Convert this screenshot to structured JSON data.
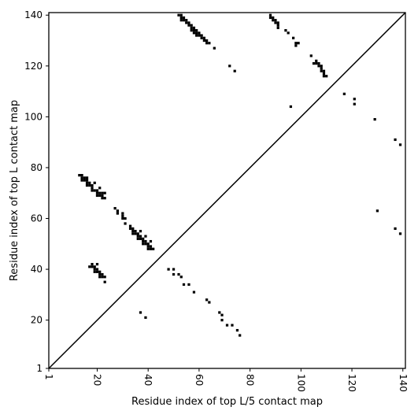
{
  "chart_data": {
    "type": "heatmap",
    "title": "",
    "xlabel": "Residue index of top L/5 contact map",
    "ylabel": "Residue index of top L contact map",
    "xlim": [
      1,
      141
    ],
    "ylim": [
      1,
      141
    ],
    "x_ticks": [
      1,
      20,
      40,
      60,
      80,
      100,
      120,
      140
    ],
    "y_ticks": [
      1,
      20,
      40,
      60,
      80,
      100,
      120,
      140
    ],
    "diagonal": true,
    "colors": {
      "contact": "#000000",
      "background": "#ffffff",
      "diagonal": "#000000"
    },
    "contacts": [
      [
        13,
        77
      ],
      [
        14,
        77
      ],
      [
        14,
        76
      ],
      [
        15,
        76
      ],
      [
        16,
        76
      ],
      [
        14,
        75
      ],
      [
        15,
        75
      ],
      [
        16,
        75
      ],
      [
        16,
        74
      ],
      [
        17,
        74
      ],
      [
        16,
        73
      ],
      [
        17,
        73
      ],
      [
        18,
        73
      ],
      [
        18,
        72
      ],
      [
        18,
        71
      ],
      [
        19,
        71
      ],
      [
        20,
        71
      ],
      [
        19,
        74
      ],
      [
        21,
        72
      ],
      [
        20,
        70
      ],
      [
        21,
        70
      ],
      [
        22,
        70
      ],
      [
        20,
        69
      ],
      [
        21,
        69
      ],
      [
        22,
        69
      ],
      [
        23,
        70
      ],
      [
        22,
        68
      ],
      [
        23,
        68
      ],
      [
        27,
        64
      ],
      [
        28,
        63
      ],
      [
        28,
        62
      ],
      [
        30,
        62
      ],
      [
        30,
        61
      ],
      [
        30,
        60
      ],
      [
        31,
        60
      ],
      [
        31,
        58
      ],
      [
        33,
        57
      ],
      [
        33,
        56
      ],
      [
        34,
        56
      ],
      [
        34,
        55
      ],
      [
        35,
        55
      ],
      [
        34,
        54
      ],
      [
        35,
        54
      ],
      [
        36,
        54
      ],
      [
        37,
        55
      ],
      [
        36,
        53
      ],
      [
        37,
        53
      ],
      [
        36,
        52
      ],
      [
        37,
        52
      ],
      [
        38,
        52
      ],
      [
        39,
        53
      ],
      [
        38,
        51
      ],
      [
        39,
        51
      ],
      [
        38,
        50
      ],
      [
        39,
        50
      ],
      [
        40,
        50
      ],
      [
        41,
        51
      ],
      [
        40,
        49
      ],
      [
        41,
        49
      ],
      [
        40,
        48
      ],
      [
        41,
        48
      ],
      [
        42,
        48
      ],
      [
        17,
        41
      ],
      [
        18,
        42
      ],
      [
        18,
        41
      ],
      [
        19,
        41
      ],
      [
        20,
        42
      ],
      [
        19,
        40
      ],
      [
        20,
        40
      ],
      [
        19,
        39
      ],
      [
        20,
        39
      ],
      [
        21,
        39
      ],
      [
        21,
        38
      ],
      [
        22,
        38
      ],
      [
        21,
        37
      ],
      [
        22,
        37
      ],
      [
        23,
        37
      ],
      [
        23,
        35
      ],
      [
        37,
        23
      ],
      [
        39,
        21
      ],
      [
        48,
        40
      ],
      [
        50,
        40
      ],
      [
        50,
        38
      ],
      [
        52,
        38
      ],
      [
        53,
        37
      ],
      [
        54,
        34
      ],
      [
        56,
        34
      ],
      [
        58,
        31
      ],
      [
        63,
        28
      ],
      [
        64,
        27
      ],
      [
        68,
        23
      ],
      [
        69,
        22
      ],
      [
        69,
        20
      ],
      [
        71,
        18
      ],
      [
        73,
        18
      ],
      [
        75,
        16
      ],
      [
        76,
        14
      ],
      [
        52,
        140
      ],
      [
        53,
        140
      ],
      [
        53,
        139
      ],
      [
        54,
        139
      ],
      [
        53,
        138
      ],
      [
        54,
        138
      ],
      [
        55,
        138
      ],
      [
        55,
        137
      ],
      [
        56,
        137
      ],
      [
        56,
        136
      ],
      [
        57,
        136
      ],
      [
        57,
        135
      ],
      [
        58,
        135
      ],
      [
        57,
        134
      ],
      [
        58,
        134
      ],
      [
        59,
        134
      ],
      [
        58,
        133
      ],
      [
        59,
        133
      ],
      [
        60,
        133
      ],
      [
        59,
        132
      ],
      [
        60,
        132
      ],
      [
        61,
        132
      ],
      [
        61,
        131
      ],
      [
        62,
        131
      ],
      [
        62,
        130
      ],
      [
        63,
        130
      ],
      [
        63,
        129
      ],
      [
        64,
        129
      ],
      [
        66,
        127
      ],
      [
        72,
        120
      ],
      [
        74,
        118
      ],
      [
        88,
        140
      ],
      [
        88,
        139
      ],
      [
        89,
        139
      ],
      [
        89,
        138
      ],
      [
        90,
        138
      ],
      [
        90,
        137
      ],
      [
        91,
        137
      ],
      [
        91,
        136
      ],
      [
        91,
        135
      ],
      [
        94,
        134
      ],
      [
        95,
        133
      ],
      [
        97,
        131
      ],
      [
        98,
        129
      ],
      [
        99,
        129
      ],
      [
        98,
        128
      ],
      [
        104,
        124
      ],
      [
        106,
        122
      ],
      [
        105,
        121
      ],
      [
        106,
        121
      ],
      [
        107,
        121
      ],
      [
        107,
        120
      ],
      [
        108,
        120
      ],
      [
        108,
        119
      ],
      [
        108,
        118
      ],
      [
        109,
        118
      ],
      [
        109,
        117
      ],
      [
        109,
        116
      ],
      [
        110,
        116
      ],
      [
        96,
        104
      ],
      [
        117,
        109
      ],
      [
        121,
        107
      ],
      [
        121,
        105
      ],
      [
        129,
        99
      ],
      [
        137,
        91
      ],
      [
        139,
        89
      ],
      [
        130,
        63
      ],
      [
        137,
        56
      ],
      [
        139,
        54
      ]
    ]
  }
}
